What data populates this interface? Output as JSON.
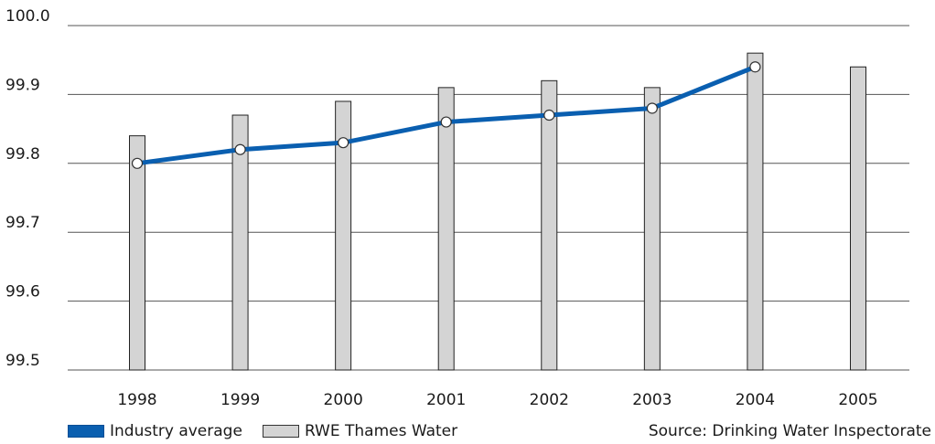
{
  "chart_data": {
    "type": "bar",
    "categories": [
      "1998",
      "1999",
      "2000",
      "2001",
      "2002",
      "2003",
      "2004",
      "2005"
    ],
    "series": [
      {
        "name": "RWE Thames Water",
        "type": "bar",
        "color": "#d4d4d4",
        "values": [
          99.84,
          99.87,
          99.89,
          99.91,
          99.92,
          99.91,
          99.96,
          99.94
        ]
      },
      {
        "name": "Industry average",
        "type": "line",
        "color": "#0a5fb0",
        "values": [
          99.8,
          99.82,
          99.83,
          99.86,
          99.87,
          99.88,
          99.94,
          null
        ]
      }
    ],
    "ylim": [
      99.5,
      100.0
    ],
    "yticks": [
      "99.5",
      "99.6",
      "99.7",
      "99.8",
      "99.9",
      "100.0"
    ],
    "grid": true,
    "legend_position": "bottom-left"
  },
  "legend": {
    "line_label": "Industry average",
    "bar_label": "RWE Thames Water"
  },
  "source": "Source: Drinking Water Inspectorate"
}
